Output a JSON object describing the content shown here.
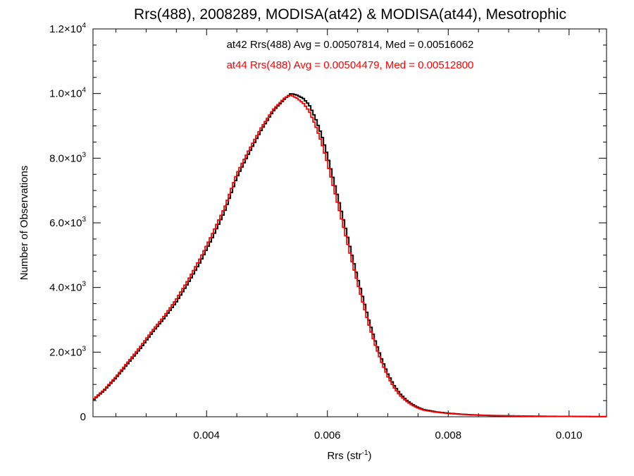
{
  "chart_data": {
    "type": "line",
    "title": "Rrs(488), 2008289, MODISA(at42) & MODISA(at44), Mesotrophic",
    "xlabel_base": "Rrs (str",
    "xlabel_sup": "-1",
    "xlabel_close": ")",
    "ylabel": "Number of Observations",
    "xlim": [
      0.00212,
      0.01062
    ],
    "ylim": [
      0,
      12000
    ],
    "grid": false,
    "step_plot": true,
    "x_ticks": [
      {
        "value": 0.004,
        "label": "0.004"
      },
      {
        "value": 0.006,
        "label": "0.006"
      },
      {
        "value": 0.008,
        "label": "0.008"
      },
      {
        "value": 0.01,
        "label": "0.010"
      }
    ],
    "y_ticks": [
      {
        "value": 0,
        "mant": "0",
        "exp": ""
      },
      {
        "value": 2000,
        "mant": "2.0×10",
        "exp": "3"
      },
      {
        "value": 4000,
        "mant": "4.0×10",
        "exp": "3"
      },
      {
        "value": 6000,
        "mant": "6.0×10",
        "exp": "3"
      },
      {
        "value": 8000,
        "mant": "8.0×10",
        "exp": "3"
      },
      {
        "value": 10000,
        "mant": "1.0×10",
        "exp": "4"
      },
      {
        "value": 12000,
        "mant": "1.2×10",
        "exp": "4"
      }
    ],
    "series": [
      {
        "name": "at42",
        "color": "#000000",
        "stat_label": "at42 Rrs(488) Avg = 0.00507814, Med = 0.00516062",
        "x": [
          0.0021,
          0.0023,
          0.0025,
          0.0027,
          0.0029,
          0.0031,
          0.0033,
          0.0035,
          0.0037,
          0.0039,
          0.0041,
          0.0043,
          0.0045,
          0.0047,
          0.0049,
          0.0051,
          0.0053,
          0.0054,
          0.0055,
          0.0056,
          0.0057,
          0.0058,
          0.0059,
          0.006,
          0.0061,
          0.0062,
          0.0063,
          0.0064,
          0.0065,
          0.0066,
          0.0067,
          0.0068,
          0.0069,
          0.007,
          0.0071,
          0.0072,
          0.0073,
          0.0074,
          0.0075,
          0.0076,
          0.0078,
          0.008,
          0.0082,
          0.0084,
          0.0086,
          0.0088,
          0.009,
          0.0094,
          0.0098,
          0.0102,
          0.0106
        ],
        "y": [
          480,
          800,
          1200,
          1650,
          2100,
          2600,
          3050,
          3550,
          4150,
          4800,
          5550,
          6350,
          7400,
          8150,
          8850,
          9450,
          9850,
          10000,
          9950,
          9850,
          9650,
          9250,
          8750,
          8100,
          7350,
          6600,
          5850,
          5050,
          4300,
          3600,
          2900,
          2300,
          1780,
          1330,
          980,
          720,
          530,
          390,
          290,
          220,
          150,
          110,
          80,
          60,
          45,
          35,
          28,
          18,
          12,
          8,
          5
        ]
      },
      {
        "name": "at44",
        "color": "#ff0000",
        "stat_label": "at44 Rrs(488) Avg = 0.00504479, Med = 0.00512800",
        "x": [
          0.0021,
          0.0023,
          0.0025,
          0.0027,
          0.0029,
          0.0031,
          0.0033,
          0.0035,
          0.0037,
          0.0039,
          0.0041,
          0.0043,
          0.0045,
          0.0047,
          0.0049,
          0.0051,
          0.0053,
          0.0054,
          0.0055,
          0.0056,
          0.0057,
          0.0058,
          0.0059,
          0.006,
          0.0061,
          0.0062,
          0.0063,
          0.0064,
          0.0065,
          0.0066,
          0.0067,
          0.0068,
          0.0069,
          0.007,
          0.0071,
          0.0072,
          0.0073,
          0.0074,
          0.0075,
          0.0076,
          0.0078,
          0.008,
          0.0082,
          0.0084,
          0.0086,
          0.0088,
          0.009,
          0.0094,
          0.0098,
          0.0102,
          0.0106
        ],
        "y": [
          500,
          830,
          1240,
          1700,
          2160,
          2660,
          3120,
          3640,
          4250,
          4920,
          5680,
          6480,
          7520,
          8250,
          8930,
          9500,
          9880,
          9950,
          9850,
          9700,
          9450,
          9020,
          8500,
          7850,
          7100,
          6360,
          5620,
          4850,
          4120,
          3430,
          2750,
          2170,
          1670,
          1240,
          910,
          660,
          490,
          360,
          265,
          200,
          140,
          100,
          75,
          55,
          42,
          32,
          25,
          16,
          11,
          7,
          4
        ]
      }
    ]
  }
}
